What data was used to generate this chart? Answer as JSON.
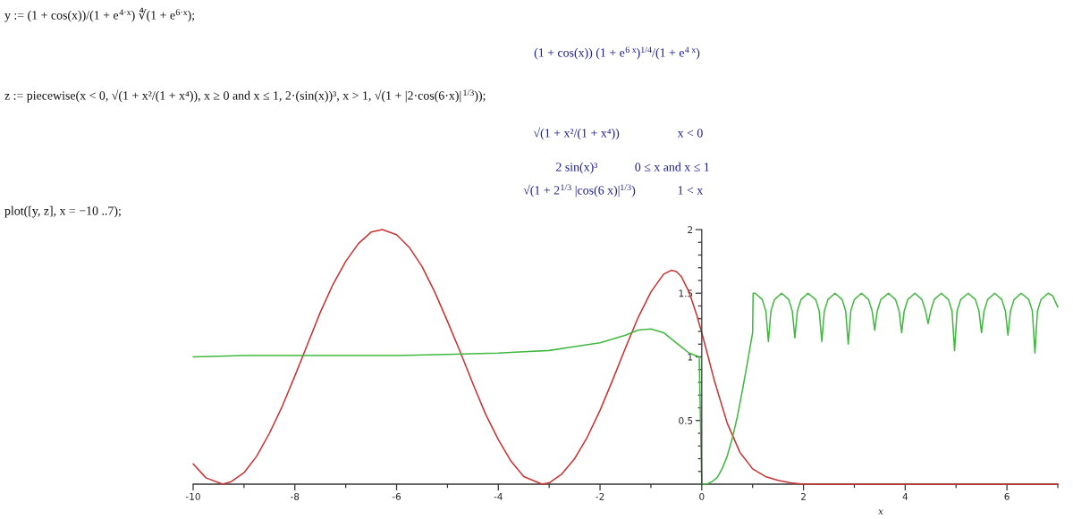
{
  "chart_data": {
    "type": "line",
    "xlabel": "x",
    "annotations": [
      "y := (1 + cos(x))/(1 + e$^{4·x}$) ∜(1 + e$^{6·x}$);",
      "(1 + cos(x)) (1 + e$^{6 x}$)$^{1/4}$/(1 + e$^{4 x}$)",
      "z := piecewise(x < 0, √(1 + x²/(1 + x⁴)), x ≥ 0 and x ≤ 1, 2·(sin(x))³, x > 1, √(1 + |2·cos(6·x)|$^{1/3}$));",
      "√(1 + x²/(1 + x⁴))",
      "x < 0",
      "2 sin(x)³",
      "0 ≤ x and x ≤ 1",
      "√(1 + 2$^{1/3}$ |cos(6 x)|$^{1/3}$)",
      "1 < x",
      "plot([y, z], x = −10 ..7);"
    ],
    "xlim": [
      -10,
      7
    ],
    "ylim": [
      0,
      2
    ],
    "xticks": [
      -10,
      {
        "value": -9,
        "label": null
      },
      -8,
      {
        "value": -7,
        "label": null
      },
      -6,
      {
        "value": -5,
        "label": null
      },
      -4,
      {
        "value": -3,
        "label": null
      },
      -2,
      {
        "value": -1,
        "label": null
      },
      0,
      {
        "value": 1,
        "label": null
      },
      2,
      {
        "value": 3,
        "label": null
      },
      4,
      {
        "value": 5,
        "label": null
      },
      6,
      {
        "value": 7,
        "label": null
      }
    ],
    "yticks": [
      {
        "value": 0.1,
        "label": null
      },
      {
        "value": 0.2,
        "label": null
      },
      {
        "value": 0.3,
        "label": null
      },
      {
        "value": 0.4,
        "label": null
      },
      0.5,
      {
        "value": 0.6,
        "label": null
      },
      {
        "value": 0.7,
        "label": null
      },
      {
        "value": 0.8,
        "label": null
      },
      {
        "value": 0.9,
        "label": null
      },
      1,
      {
        "value": 1.1,
        "label": null
      },
      {
        "value": 1.2,
        "label": null
      },
      {
        "value": 1.3,
        "label": null
      },
      {
        "value": 1.4,
        "label": null
      },
      1.5,
      {
        "value": 1.6,
        "label": null
      },
      {
        "value": 1.7,
        "label": null
      },
      {
        "value": 1.8,
        "label": null
      },
      {
        "value": 1.9,
        "label": null
      },
      2
    ],
    "series": [
      {
        "color": "#c83232",
        "x": [
          -10,
          -9.75,
          -9.42,
          -9.25,
          -9,
          -8.75,
          -8.5,
          -8.25,
          -8,
          -7.75,
          -7.5,
          -7.25,
          -7,
          -6.75,
          -6.5,
          -6.28,
          -6,
          -5.75,
          -5.5,
          -5.25,
          -5,
          -4.75,
          -4.5,
          -4.25,
          -4,
          -3.75,
          -3.5,
          -3.14,
          -3,
          -2.75,
          -2.5,
          -2.25,
          -2,
          -1.75,
          -1.5,
          -1.25,
          -1,
          -0.75,
          -0.6,
          -0.5,
          -0.4,
          -0.25,
          -0.1,
          0,
          0.1,
          0.25,
          0.5,
          0.75,
          1,
          1.25,
          1.5,
          1.75,
          2,
          3,
          4,
          5,
          6,
          7
        ],
        "values": [
          0.16,
          0.05,
          0,
          0.02,
          0.09,
          0.22,
          0.4,
          0.61,
          0.85,
          1.1,
          1.35,
          1.57,
          1.75,
          1.89,
          1.98,
          2.0,
          1.96,
          1.86,
          1.71,
          1.51,
          1.28,
          1.04,
          0.79,
          0.55,
          0.35,
          0.18,
          0.06,
          0,
          0.01,
          0.08,
          0.2,
          0.37,
          0.58,
          0.82,
          1.07,
          1.31,
          1.51,
          1.65,
          1.68,
          1.67,
          1.63,
          1.51,
          1.33,
          1.19,
          1.04,
          0.81,
          0.48,
          0.25,
          0.12,
          0.06,
          0.03,
          0.01,
          0,
          0,
          0,
          0,
          0,
          0
        ]
      },
      {
        "color": "#40b840",
        "x": [
          -10,
          -9,
          -8,
          -7,
          -6,
          -5,
          -4,
          -3.5,
          -3,
          -2.5,
          -2,
          -1.75,
          -1.5,
          -1.25,
          -1,
          -0.75,
          -0.5,
          -0.25,
          -0.05,
          0,
          0.1,
          0.2,
          0.3,
          0.4,
          0.5,
          0.6,
          0.7,
          0.8,
          0.9,
          1,
          1.01,
          1.05,
          1.19,
          1.26,
          1.31,
          1.36,
          1.43,
          1.57,
          1.71,
          1.78,
          1.83,
          1.88,
          1.95,
          2.09,
          2.24,
          2.31,
          2.36,
          2.41,
          2.48,
          2.62,
          2.76,
          2.83,
          2.88,
          2.93,
          3.0,
          3.14,
          3.28,
          3.35,
          3.4,
          3.45,
          3.52,
          3.67,
          3.81,
          3.88,
          3.93,
          3.98,
          4.05,
          4.19,
          4.33,
          4.4,
          4.45,
          4.5,
          4.57,
          4.71,
          4.85,
          4.92,
          4.97,
          5.02,
          5.09,
          5.24,
          5.38,
          5.45,
          5.5,
          5.55,
          5.62,
          5.76,
          5.9,
          5.97,
          6.02,
          6.07,
          6.14,
          6.28,
          6.43,
          6.5,
          6.55,
          6.6,
          6.67,
          6.81,
          6.9,
          7
        ],
        "values": [
          1.0,
          1.01,
          1.01,
          1.01,
          1.01,
          1.02,
          1.03,
          1.04,
          1.05,
          1.08,
          1.11,
          1.14,
          1.17,
          1.21,
          1.22,
          1.19,
          1.11,
          1.03,
          1.0,
          0,
          0,
          0.02,
          0.05,
          0.12,
          0.22,
          0.36,
          0.53,
          0.74,
          0.96,
          1.19,
          1.5,
          1.5,
          1.45,
          1.36,
          1.12,
          1.36,
          1.45,
          1.5,
          1.45,
          1.36,
          1.15,
          1.36,
          1.45,
          1.5,
          1.45,
          1.36,
          1.12,
          1.36,
          1.45,
          1.5,
          1.45,
          1.36,
          1.1,
          1.36,
          1.45,
          1.5,
          1.45,
          1.36,
          1.21,
          1.36,
          1.45,
          1.5,
          1.45,
          1.36,
          1.19,
          1.36,
          1.45,
          1.5,
          1.45,
          1.36,
          1.26,
          1.36,
          1.45,
          1.5,
          1.45,
          1.36,
          1.05,
          1.36,
          1.45,
          1.5,
          1.45,
          1.36,
          1.19,
          1.36,
          1.45,
          1.5,
          1.45,
          1.36,
          1.17,
          1.36,
          1.45,
          1.5,
          1.45,
          1.36,
          1.03,
          1.36,
          1.45,
          1.5,
          1.48,
          1.39
        ]
      }
    ]
  }
}
